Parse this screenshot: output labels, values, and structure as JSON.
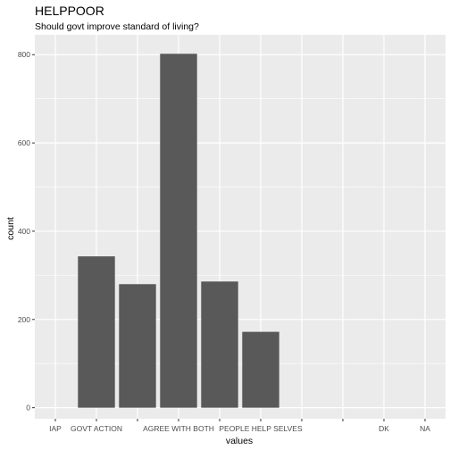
{
  "chart_data": {
    "type": "bar",
    "title": "HELPPOOR",
    "subtitle": "Should govt improve standard of living?",
    "xlabel": "values",
    "ylabel": "count",
    "categories": [
      "IAP",
      "GOVT ACTION",
      "",
      "AGREE WITH BOTH",
      "",
      "PEOPLE HELP SELVES",
      "",
      "",
      "DK",
      "NA"
    ],
    "values": [
      0,
      343,
      280,
      802,
      286,
      172,
      0,
      0,
      0,
      0
    ],
    "ylim": [
      -25,
      845
    ],
    "yticks": [
      0,
      200,
      400,
      600,
      800
    ],
    "grid": true,
    "bar_color": "#595959",
    "panel_color": "#ebebeb",
    "grid_color": "#ffffff"
  }
}
